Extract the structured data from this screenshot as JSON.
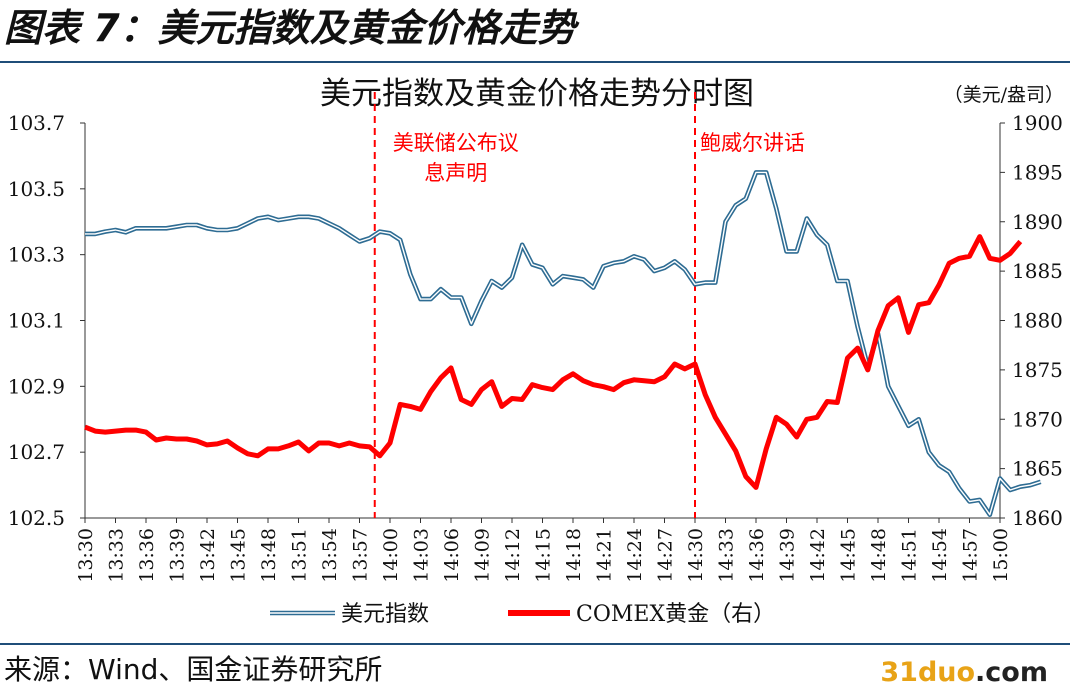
{
  "header": {
    "title": "图表 7：美元指数及黄金价格走势"
  },
  "footer": {
    "source": "来源：Wind、国金证券研究所"
  },
  "watermark": {
    "part1": "31duo",
    "part2": ".com"
  },
  "chart_data": {
    "type": "line",
    "title": "美元指数及黄金价格走势分时图",
    "unit_label": "（美元/盎司）",
    "x_tick_labels": [
      "13:30",
      "13:33",
      "13:36",
      "13:39",
      "13:42",
      "13:45",
      "13:48",
      "13:51",
      "13:54",
      "13:57",
      "14:00",
      "14:03",
      "14:06",
      "14:09",
      "14:12",
      "14:15",
      "14:18",
      "14:21",
      "14:24",
      "14:27",
      "14:30",
      "14:33",
      "14:36",
      "14:39",
      "14:42",
      "14:45",
      "14:48",
      "14:51",
      "14:54",
      "14:57",
      "15:00"
    ],
    "y_left": {
      "min": 102.5,
      "max": 103.7,
      "ticks": [
        "103.7",
        "103.5",
        "103.3",
        "103.1",
        "102.9",
        "102.7",
        "102.5"
      ]
    },
    "y_right": {
      "min": 1860,
      "max": 1900,
      "ticks": [
        "1900",
        "1895",
        "1890",
        "1885",
        "1880",
        "1875",
        "1870",
        "1865",
        "1860"
      ]
    },
    "annotations": [
      {
        "text_lines": [
          "美联储公布议",
          "息声明"
        ],
        "at_time": "13:58:30"
      },
      {
        "text_lines": [
          "鲍威尔讲话"
        ],
        "at_time": "14:30"
      }
    ],
    "series": [
      {
        "name": "美元指数",
        "axis": "left",
        "color": "#2e6c93",
        "start": "13:30",
        "interval_seconds": 60,
        "values": [
          103.363,
          103.363,
          103.37,
          103.375,
          103.368,
          103.38,
          103.38,
          103.38,
          103.38,
          103.385,
          103.39,
          103.39,
          103.38,
          103.375,
          103.375,
          103.38,
          103.395,
          103.41,
          103.415,
          103.405,
          103.41,
          103.415,
          103.415,
          103.41,
          103.395,
          103.38,
          103.36,
          103.34,
          103.35,
          103.37,
          103.365,
          103.345,
          103.24,
          103.165,
          103.165,
          103.195,
          103.17,
          103.17,
          103.09,
          103.16,
          103.22,
          103.2,
          103.23,
          103.33,
          103.27,
          103.26,
          103.21,
          103.235,
          103.23,
          103.225,
          103.2,
          103.265,
          103.275,
          103.28,
          103.295,
          103.285,
          103.25,
          103.26,
          103.28,
          103.255,
          103.21,
          103.215,
          103.215,
          103.4,
          103.45,
          103.47,
          103.55,
          103.55,
          103.44,
          103.31,
          103.31,
          103.41,
          103.36,
          103.33,
          103.22,
          103.22,
          103.08,
          102.96,
          103.06,
          102.9,
          102.84,
          102.78,
          102.8,
          102.7,
          102.66,
          102.64,
          102.59,
          102.55,
          102.555,
          102.51,
          102.62,
          102.585,
          102.595,
          102.6,
          102.61
        ]
      },
      {
        "name": "COMEX黄金（右）",
        "axis": "right",
        "color": "#ff0000",
        "start": "13:30",
        "interval_seconds": 60,
        "values": [
          1869.2,
          1868.8,
          1868.7,
          1868.8,
          1868.9,
          1868.9,
          1868.7,
          1867.9,
          1868.1,
          1868.0,
          1868.0,
          1867.8,
          1867.4,
          1867.5,
          1867.8,
          1867.1,
          1866.5,
          1866.3,
          1867.0,
          1867.0,
          1867.3,
          1867.7,
          1866.8,
          1867.6,
          1867.6,
          1867.3,
          1867.6,
          1867.3,
          1867.2,
          1866.3,
          1867.6,
          1871.5,
          1871.3,
          1871.0,
          1872.8,
          1874.2,
          1875.2,
          1872.0,
          1871.5,
          1873.0,
          1873.8,
          1871.3,
          1872.1,
          1872.0,
          1873.5,
          1873.2,
          1873.0,
          1874.0,
          1874.6,
          1873.9,
          1873.5,
          1873.3,
          1873.0,
          1873.7,
          1874.0,
          1873.9,
          1873.8,
          1874.3,
          1875.6,
          1875.1,
          1875.6,
          1872.5,
          1870.2,
          1868.5,
          1866.8,
          1864.2,
          1863.1,
          1867.0,
          1870.2,
          1869.5,
          1868.2,
          1870.0,
          1870.2,
          1871.8,
          1871.7,
          1876.2,
          1877.2,
          1875.0,
          1879.0,
          1881.5,
          1882.3,
          1878.8,
          1881.6,
          1881.8,
          1883.6,
          1885.8,
          1886.3,
          1886.5,
          1888.5,
          1886.3,
          1886.1,
          1886.8,
          1888.0
        ]
      }
    ],
    "legend": {
      "placement": "bottom-center",
      "entries": [
        "美元指数",
        "COMEX黄金（右）"
      ]
    },
    "grid": false
  }
}
